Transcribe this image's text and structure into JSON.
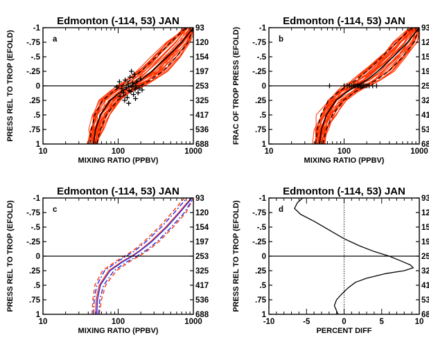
{
  "chart_data": [
    {
      "id": "a",
      "type": "line",
      "title": "Edmonton  (-114, 53) JAN",
      "panel_label": "a",
      "xlabel": "MIXING RATIO (PPBV)",
      "ylabel": "PRESS REL TO TROP (EFOLD)",
      "xscale": "log",
      "xlim": [
        10,
        1000
      ],
      "ylim": [
        1,
        -1
      ],
      "xticks": [
        "10",
        "100",
        "1000"
      ],
      "yticks": [
        "-1",
        "-.75",
        "-.5",
        "-.25",
        "0",
        ".25",
        ".5",
        ".75",
        "1"
      ],
      "y2ticks": [
        "93",
        "120",
        "154",
        "197",
        "253",
        "325",
        "417",
        "536",
        "688"
      ],
      "reference_line": {
        "axis": "y",
        "value": 0,
        "style": "solid"
      },
      "mean_profile": {
        "y": [
          1,
          0.75,
          0.5,
          0.25,
          0.1,
          0,
          -0.1,
          -0.25,
          -0.5,
          -0.75,
          -1
        ],
        "x": [
          47,
          50,
          58,
          78,
          110,
          145,
          200,
          280,
          450,
          700,
          1000
        ]
      },
      "spread_profiles": [
        {
          "y": [
            1,
            0.75,
            0.5,
            0.25,
            0.1,
            0,
            -0.1,
            -0.25,
            -0.5,
            -0.75,
            -1
          ],
          "x": [
            42,
            44,
            49,
            62,
            85,
            110,
            145,
            200,
            320,
            500,
            800
          ]
        },
        {
          "y": [
            1,
            0.75,
            0.5,
            0.25,
            0.1,
            0,
            -0.1,
            -0.25,
            -0.5,
            -0.75,
            -1
          ],
          "x": [
            52,
            58,
            70,
            98,
            140,
            195,
            270,
            390,
            600,
            850,
            1000
          ]
        }
      ],
      "tropopause_points": [
        [
          104,
          -0.07
        ],
        [
          112,
          0.05
        ],
        [
          118,
          0.12
        ],
        [
          124,
          -0.1
        ],
        [
          128,
          0.03
        ],
        [
          132,
          0.2
        ],
        [
          136,
          -0.03
        ],
        [
          140,
          0.08
        ],
        [
          144,
          -0.15
        ],
        [
          148,
          0.1
        ],
        [
          152,
          0.02
        ],
        [
          156,
          -0.05
        ],
        [
          160,
          0.15
        ],
        [
          164,
          -0.2
        ],
        [
          168,
          0.06
        ],
        [
          172,
          0.0
        ],
        [
          178,
          -0.08
        ],
        [
          184,
          0.12
        ],
        [
          190,
          0.04
        ],
        [
          198,
          -0.12
        ],
        [
          106,
          0.18
        ],
        [
          122,
          0.25
        ],
        [
          138,
          0.3
        ],
        [
          150,
          -0.25
        ],
        [
          170,
          0.22
        ],
        [
          96,
          0.02
        ],
        [
          208,
          0.07
        ]
      ]
    },
    {
      "id": "b",
      "type": "line",
      "title": "Edmonton  (-114, 53) JAN",
      "panel_label": "b",
      "xlabel": "MIXING RATIO (PPBV)",
      "ylabel": "FRAC OF TROP PRESS (EFOLD)",
      "xscale": "log",
      "xlim": [
        10,
        1000
      ],
      "ylim": [
        1,
        -1
      ],
      "xticks": [
        "10",
        "100",
        "1000"
      ],
      "yticks": [
        "-1",
        "-.75",
        "-.5",
        "-.25",
        "0",
        ".25",
        ".5",
        ".75",
        "1"
      ],
      "y2ticks": [
        "93",
        "120",
        "154",
        "197",
        "253",
        "325",
        "417",
        "536",
        "688"
      ],
      "reference_line": {
        "axis": "y",
        "value": 0,
        "style": "solid"
      },
      "mean_profile": {
        "y": [
          1,
          0.75,
          0.5,
          0.25,
          0.1,
          0,
          -0.1,
          -0.25,
          -0.5,
          -0.75,
          -1
        ],
        "x": [
          47,
          50,
          58,
          78,
          110,
          145,
          200,
          280,
          450,
          700,
          1000
        ]
      },
      "spread_profiles": [
        {
          "y": [
            1,
            0.75,
            0.5,
            0.25,
            0.1,
            0,
            -0.1,
            -0.25,
            -0.5,
            -0.75,
            -1
          ],
          "x": [
            42,
            44,
            49,
            62,
            85,
            110,
            145,
            200,
            320,
            500,
            800
          ]
        },
        {
          "y": [
            1,
            0.75,
            0.5,
            0.25,
            0.1,
            0,
            -0.1,
            -0.25,
            -0.5,
            -0.75,
            -1
          ],
          "x": [
            52,
            58,
            70,
            98,
            140,
            195,
            270,
            390,
            600,
            850,
            1000
          ]
        }
      ],
      "tropopause_points": [
        [
          64,
          0
        ],
        [
          100,
          0
        ],
        [
          110,
          0
        ],
        [
          118,
          0
        ],
        [
          125,
          0
        ],
        [
          132,
          0
        ],
        [
          138,
          0
        ],
        [
          144,
          0
        ],
        [
          150,
          0
        ],
        [
          156,
          0
        ],
        [
          162,
          0
        ],
        [
          168,
          0
        ],
        [
          175,
          0
        ],
        [
          182,
          0
        ],
        [
          190,
          0
        ],
        [
          200,
          0
        ],
        [
          215,
          0
        ],
        [
          240,
          0
        ],
        [
          270,
          0
        ]
      ]
    },
    {
      "id": "c",
      "type": "line",
      "title": "Edmonton  (-114, 53) JAN",
      "panel_label": "c",
      "xlabel": "MIXING RATIO (PPBV)",
      "ylabel": "PRESS REL TO TROP (EFOLD)",
      "xscale": "log",
      "xlim": [
        10,
        1000
      ],
      "ylim": [
        1,
        -1
      ],
      "xticks": [
        "10",
        "100",
        "1000"
      ],
      "yticks": [
        "-1",
        "-.75",
        "-.5",
        "-.25",
        "0",
        ".25",
        ".5",
        ".75",
        "1"
      ],
      "y2ticks": [
        "93",
        "120",
        "154",
        "197",
        "253",
        "325",
        "417",
        "536",
        "688"
      ],
      "reference_line": {
        "axis": "y",
        "value": 0,
        "style": "solid"
      },
      "series": [
        {
          "color": "#ff4010",
          "style": "solid",
          "y": [
            1,
            0.75,
            0.5,
            0.25,
            0.1,
            0,
            -0.1,
            -0.25,
            -0.5,
            -0.75,
            -1
          ],
          "x": [
            50,
            51,
            56,
            75,
            110,
            150,
            195,
            270,
            430,
            640,
            930
          ]
        },
        {
          "color": "#3030e0",
          "style": "solid",
          "y": [
            1,
            0.75,
            0.5,
            0.25,
            0.1,
            0,
            -0.1,
            -0.25,
            -0.5,
            -0.75,
            -1
          ],
          "x": [
            52,
            53,
            58,
            78,
            114,
            155,
            200,
            280,
            445,
            660,
            960
          ]
        },
        {
          "color": "#ff4010",
          "style": "dashed",
          "y": [
            1,
            0.75,
            0.5,
            0.25,
            0.1,
            0,
            -0.1,
            -0.25,
            -0.5,
            -0.75,
            -1
          ],
          "x": [
            45,
            46,
            49,
            62,
            90,
            120,
            160,
            220,
            350,
            520,
            760
          ]
        },
        {
          "color": "#ff4010",
          "style": "dashed",
          "y": [
            1,
            0.75,
            0.5,
            0.25,
            0.1,
            0,
            -0.1,
            -0.25,
            -0.5,
            -0.75,
            -1
          ],
          "x": [
            56,
            60,
            68,
            95,
            140,
            190,
            250,
            350,
            540,
            800,
            1000
          ]
        },
        {
          "color": "#3030e0",
          "style": "dashdot",
          "y": [
            1,
            0.75,
            0.5,
            0.25,
            0.1,
            0,
            -0.1,
            -0.25,
            -0.5,
            -0.75,
            -1
          ],
          "x": [
            47,
            48,
            52,
            66,
            96,
            128,
            170,
            235,
            375,
            560,
            820
          ]
        },
        {
          "color": "#3030e0",
          "style": "dashdot",
          "y": [
            1,
            0.75,
            0.5,
            0.25,
            0.1,
            0,
            -0.1,
            -0.25,
            -0.5,
            -0.75,
            -1
          ],
          "x": [
            55,
            57,
            64,
            88,
            130,
            178,
            235,
            330,
            510,
            760,
            1000
          ]
        }
      ]
    },
    {
      "id": "d",
      "type": "line",
      "title": "Edmonton  (-114, 53) JAN",
      "panel_label": "d",
      "xlabel": "PERCENT DIFF",
      "ylabel": "PRESS REL TO TROP (EFOLD)",
      "xscale": "linear",
      "xlim": [
        -10,
        10
      ],
      "ylim": [
        1,
        -1
      ],
      "xticks": [
        "-10",
        "-5",
        "0",
        "5",
        "10"
      ],
      "yticks": [
        "-1",
        "-.75",
        "-.5",
        "-.25",
        "0",
        ".25",
        ".5",
        ".75",
        "1"
      ],
      "y2ticks": [
        "93",
        "120",
        "154",
        "197",
        "253",
        "325",
        "417",
        "536",
        "688"
      ],
      "reference_line": {
        "axis": "y",
        "value": 0,
        "style": "solid"
      },
      "reference_vline": {
        "axis": "x",
        "value": 0,
        "style": "dotted"
      },
      "series": [
        {
          "color": "#000000",
          "style": "solid",
          "y": [
            -1,
            -0.92,
            -0.82,
            -0.72,
            -0.6,
            -0.45,
            -0.3,
            -0.18,
            -0.08,
            0,
            0.08,
            0.15,
            0.2,
            0.25,
            0.3,
            0.38,
            0.45,
            0.55,
            0.65,
            0.75,
            0.85,
            1
          ],
          "x": [
            -5.5,
            -6.2,
            -6.6,
            -5.8,
            -4,
            -2,
            0,
            2,
            4,
            6,
            7.5,
            8.8,
            9.2,
            8,
            5.5,
            3,
            1.5,
            0.5,
            -0.3,
            -1,
            -1.3,
            -0.8
          ]
        }
      ]
    }
  ]
}
